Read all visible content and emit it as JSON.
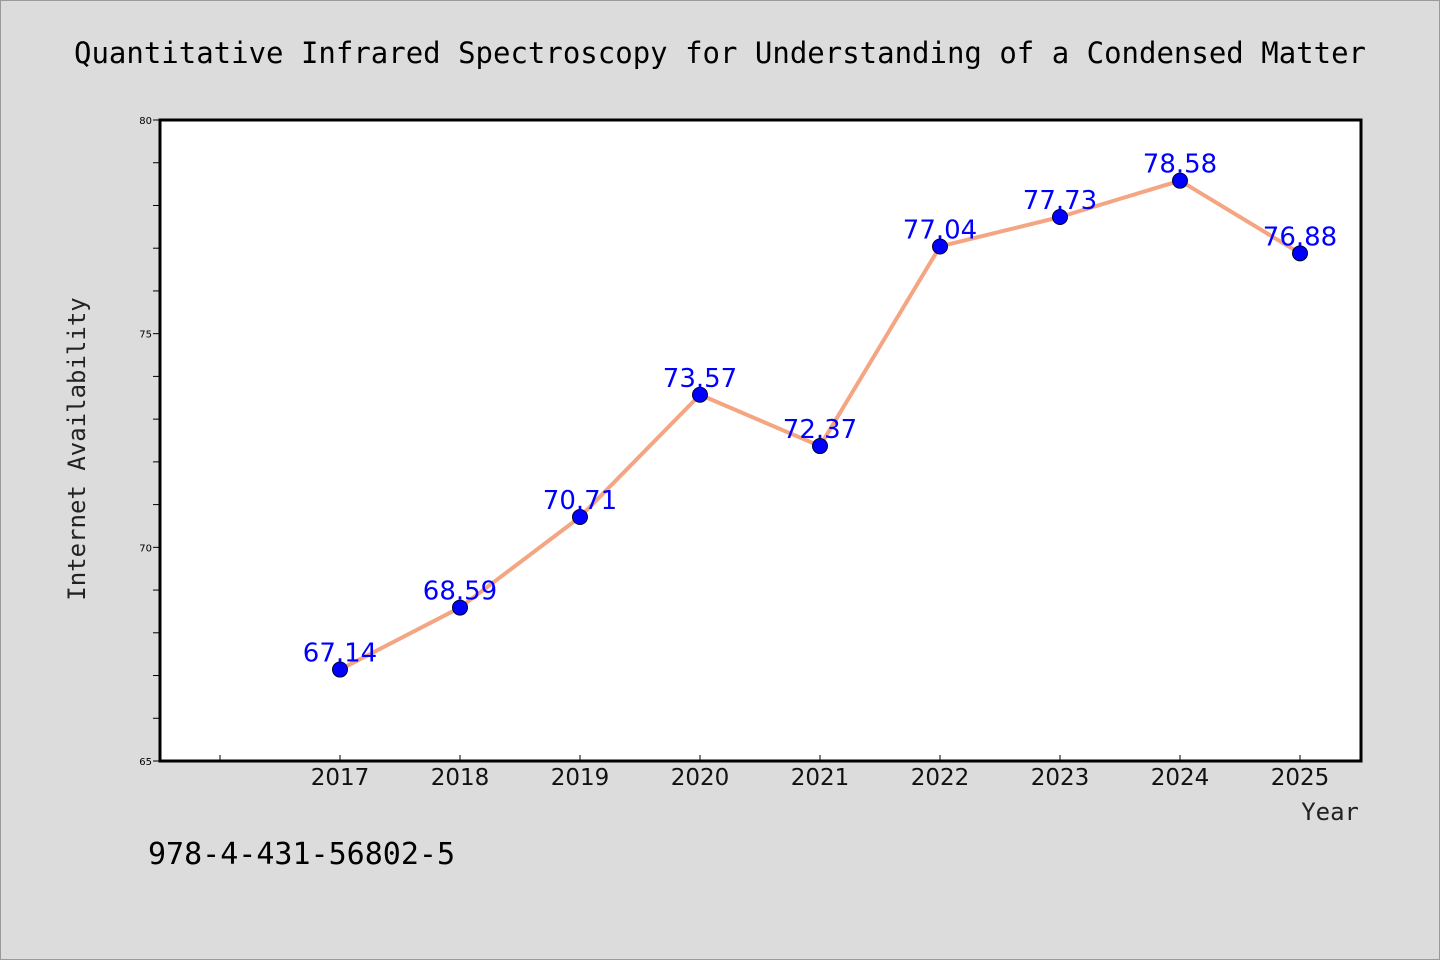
{
  "title": "Quantitative Infrared Spectroscopy for Understanding of a Condensed Matter",
  "footer_code": "978-4-431-56802-5",
  "colors": {
    "background": "#dcdcdc",
    "plot_background": "#ffffff",
    "line": "#f4a582",
    "marker": "#0000ff",
    "data_label": "#0000ff"
  },
  "chart_data": {
    "type": "line",
    "title": "Quantitative Infrared Spectroscopy for Understanding of a Condensed Matter",
    "xlabel": "Year",
    "ylabel": "Internet Availability",
    "categories": [
      "2017",
      "2018",
      "2019",
      "2020",
      "2021",
      "2022",
      "2023",
      "2024",
      "2025"
    ],
    "series": [
      {
        "values": [
          67.14,
          68.59,
          70.71,
          73.57,
          72.37,
          77.04,
          77.73,
          78.58,
          76.88
        ],
        "labels": [
          "67.14",
          "68.59",
          "70.71",
          "73.57",
          "72.37",
          "77.04",
          "77.73",
          "78.58",
          "76.88"
        ]
      }
    ],
    "ylim": [
      65,
      80
    ],
    "yticks_labeled": [
      "65",
      "70",
      "75",
      "80"
    ],
    "ytick_minor_step": 1,
    "grid": false,
    "legend": "none"
  }
}
